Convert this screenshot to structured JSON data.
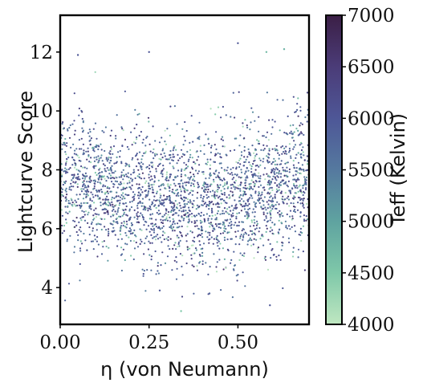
{
  "chart_data": {
    "type": "scatter",
    "xlabel": "η (von Neumann)",
    "ylabel": "Lightcurve Score",
    "xlim": [
      0.0,
      0.7
    ],
    "ylim": [
      2.75,
      13.25
    ],
    "x_ticks": [
      0.0,
      0.25,
      0.5
    ],
    "x_tick_labels": [
      "0.00",
      "0.25",
      "0.50"
    ],
    "y_ticks": [
      4,
      6,
      8,
      10,
      12
    ],
    "y_tick_labels": [
      "4",
      "6",
      "8",
      "10",
      "12"
    ],
    "grid": false,
    "colorbar": {
      "label": "Teff (Kelvin)",
      "range": [
        4000,
        7000
      ],
      "ticks": [
        4000,
        4500,
        5000,
        5500,
        6000,
        6500,
        7000
      ],
      "tick_labels": [
        "4000",
        "4500",
        "5000",
        "5500",
        "6000",
        "6500",
        "7000"
      ],
      "colormap": "mako-like",
      "colors": [
        "#bfe7c1",
        "#7fc8a9",
        "#5fa3a0",
        "#55799f",
        "#4e5797",
        "#4b3c78",
        "#3b1f46"
      ]
    },
    "series": [
      {
        "distribution": "dense cloud of points",
        "x_range": [
          0.0,
          0.7
        ],
        "y_range": [
          3.2,
          12.3
        ],
        "core_x": [
          0.1,
          0.6
        ],
        "core_y": [
          5.5,
          9.0
        ],
        "teff_typical": [
          5500,
          6200
        ],
        "points": [
          {
            "x": 0.05,
            "y": 11.9,
            "teff": 6000
          },
          {
            "x": 0.25,
            "y": 12.0,
            "teff": 6000
          },
          {
            "x": 0.5,
            "y": 12.3,
            "teff": 6000
          },
          {
            "x": 0.58,
            "y": 12.0,
            "teff": 4700
          },
          {
            "x": 0.63,
            "y": 12.1,
            "teff": 4800
          },
          {
            "x": 0.34,
            "y": 3.2,
            "teff": 4500
          },
          {
            "x": 0.59,
            "y": 3.4,
            "teff": 6000
          },
          {
            "x": 0.28,
            "y": 3.9,
            "teff": 6000
          },
          {
            "x": 0.42,
            "y": 3.8,
            "teff": 5800
          }
        ]
      }
    ]
  }
}
